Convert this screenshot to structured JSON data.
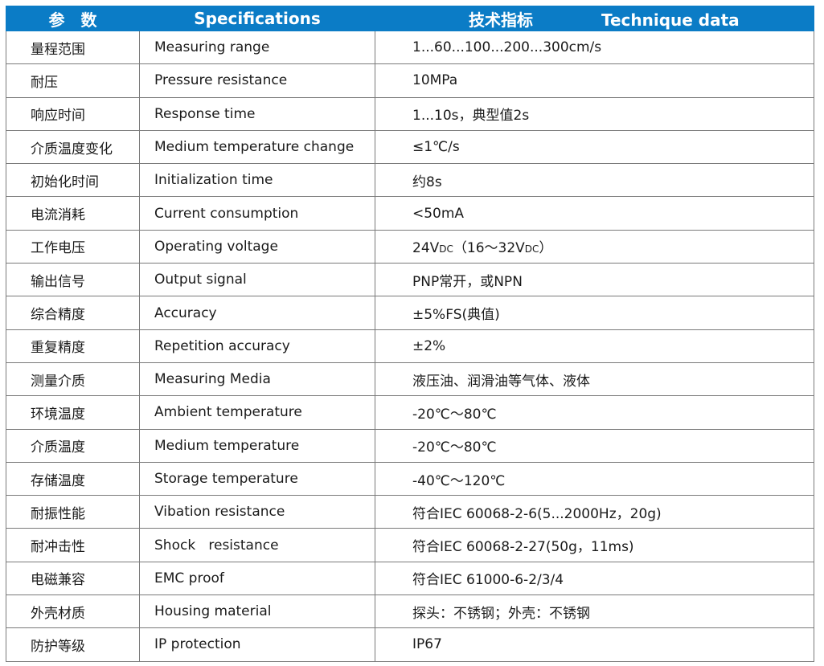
{
  "header": {
    "col1": "参　数",
    "col2": "Specifications",
    "col3_cn": "技术指标",
    "col3_en": "Technique data"
  },
  "colors": {
    "header_bg": "#0b7cc6",
    "header_text": "#ffffff",
    "border": "#7a7a7a"
  },
  "rows": [
    {
      "cn": "量程范围",
      "en": "Measuring range",
      "value": "1...60...100...200...300cm/s"
    },
    {
      "cn": "耐压",
      "en": "Pressure resistance",
      "value": "10MPa"
    },
    {
      "cn": "响应时间",
      "en": "Response time",
      "value": "1...10s，典型值2s"
    },
    {
      "cn": "介质温度变化",
      "en": "Medium temperature change",
      "value": "≤1℃/s"
    },
    {
      "cn": "初始化时间",
      "en": "Initialization time",
      "value": "约8s"
    },
    {
      "cn": "电流消耗",
      "en": "Current consumption",
      "value": "<50mA"
    },
    {
      "cn": "工作电压",
      "en": "Operating voltage",
      "value_parts": [
        "24V",
        "DC",
        "（16～32V",
        "DC",
        "）"
      ]
    },
    {
      "cn": "输出信号",
      "en": "Output signal",
      "value": "PNP常开，或NPN"
    },
    {
      "cn": "综合精度",
      "en": "Accuracy",
      "value": "±5%FS(典值)"
    },
    {
      "cn": "重复精度",
      "en": "Repetition accuracy",
      "value": "±2%"
    },
    {
      "cn": "测量介质",
      "en": "Measuring Media",
      "value": "液压油、润滑油等气体、液体"
    },
    {
      "cn": "环境温度",
      "en": "Ambient temperature",
      "value": "-20℃～80℃"
    },
    {
      "cn": "介质温度",
      "en": "Medium temperature",
      "value": "-20℃～80℃"
    },
    {
      "cn": "存储温度",
      "en": "Storage temperature",
      "value": "-40℃～120℃"
    },
    {
      "cn": "耐振性能",
      "en": "Vibation resistance",
      "value": "符合IEC 60068-2-6(5...2000Hz，20g)"
    },
    {
      "cn": "耐冲击性",
      "en": "Shock   resistance",
      "value": "符合IEC 60068-2-27(50g，11ms)"
    },
    {
      "cn": "电磁兼容",
      "en": "EMC proof",
      "value": "符合IEC 61000-6-2/3/4"
    },
    {
      "cn": "外壳材质",
      "en": "Housing material",
      "value": "探头：不锈钢；外壳：不锈钢"
    },
    {
      "cn": "防护等级",
      "en": "IP protection",
      "value": "IP67"
    }
  ]
}
